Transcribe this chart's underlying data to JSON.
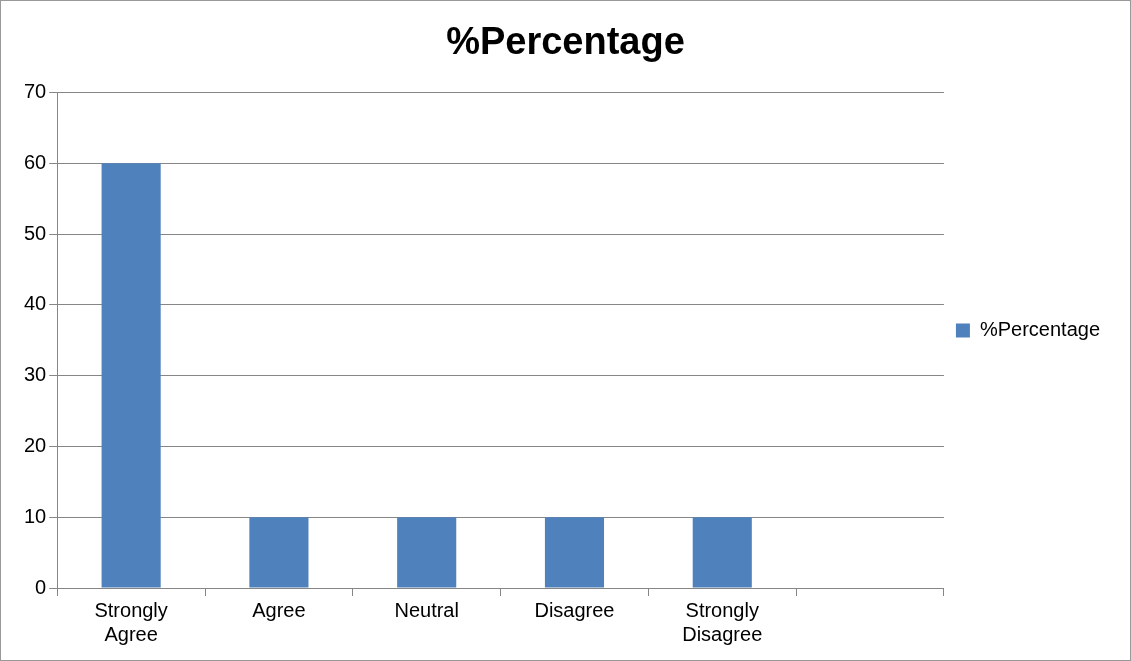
{
  "chart_data": {
    "type": "bar",
    "title": "%Percentage",
    "categories": [
      "Strongly Agree",
      "Agree",
      "Neutral",
      "Disagree",
      "Strongly Disagree",
      null
    ],
    "series": [
      {
        "name": "%Percentage",
        "color": "#4f81bd",
        "values": [
          60,
          10,
          10,
          10,
          10,
          null
        ]
      }
    ],
    "ylim": [
      0,
      70
    ],
    "yticks": [
      0,
      10,
      20,
      30,
      40,
      50,
      60,
      70
    ],
    "grid": "y",
    "legend": "right"
  }
}
